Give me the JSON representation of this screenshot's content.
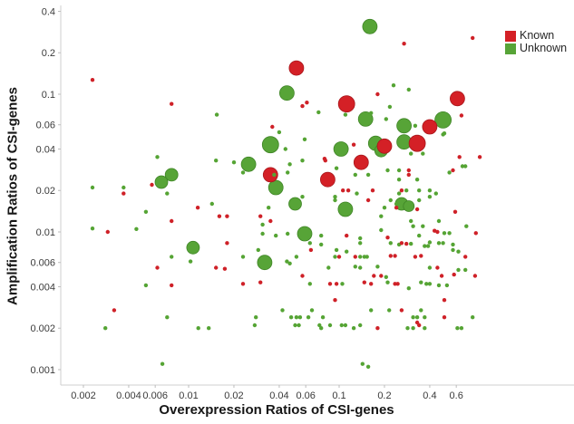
{
  "chart_data": {
    "type": "scatter",
    "title": "",
    "xlabel": "Overexpression Ratios of CSI-genes",
    "ylabel": "Amplification Ratios of CSI-genes",
    "x_scale": "log",
    "y_scale": "log",
    "x_ticks": [
      0.002,
      0.004,
      0.006,
      0.01,
      0.02,
      0.04,
      0.06,
      0.1,
      0.2,
      0.4,
      0.6
    ],
    "y_ticks": [
      0.4,
      0.2,
      0.1,
      0.06,
      0.04,
      0.02,
      0.01,
      0.006,
      0.004,
      0.002,
      0.001
    ],
    "xlim": [
      0.0016,
      1.0
    ],
    "ylim": [
      0.00075,
      0.45
    ],
    "grid": false,
    "legend_position": "top-right",
    "legend": [
      {
        "label": "Known",
        "color": "#d42026"
      },
      {
        "label": "Unknown",
        "color": "#57a437"
      }
    ],
    "series": [
      {
        "name": "Unknown (large bubbles)",
        "color": "#57a437",
        "edge_color": "#3f8526",
        "marker_radius": 8,
        "points": [
          [
            0.16,
            0.31,
            8
          ],
          [
            0.045,
            0.102,
            8
          ],
          [
            0.15,
            0.066,
            8
          ],
          [
            0.27,
            0.059,
            8
          ],
          [
            0.49,
            0.065,
            9
          ],
          [
            0.27,
            0.045,
            8
          ],
          [
            0.175,
            0.044,
            8
          ],
          [
            0.19,
            0.039,
            7
          ],
          [
            0.035,
            0.043,
            9
          ],
          [
            0.103,
            0.04,
            8
          ],
          [
            0.025,
            0.031,
            8
          ],
          [
            0.038,
            0.021,
            8
          ],
          [
            0.051,
            0.016,
            7
          ],
          [
            0.11,
            0.0146,
            8
          ],
          [
            0.059,
            0.0097,
            8
          ],
          [
            0.0077,
            0.026,
            7
          ],
          [
            0.0066,
            0.023,
            7
          ],
          [
            0.0107,
            0.0077,
            7
          ],
          [
            0.032,
            0.006,
            8
          ],
          [
            0.26,
            0.016,
            7
          ],
          [
            0.29,
            0.0154,
            6
          ]
        ]
      },
      {
        "name": "Known (large bubbles)",
        "color": "#d42026",
        "edge_color": "#a8181d",
        "marker_radius": 8,
        "points": [
          [
            0.052,
            0.155,
            8
          ],
          [
            0.112,
            0.085,
            9
          ],
          [
            0.14,
            0.032,
            8
          ],
          [
            0.084,
            0.024,
            8
          ],
          [
            0.035,
            0.026,
            8
          ],
          [
            0.61,
            0.093,
            8
          ],
          [
            0.4,
            0.058,
            8
          ],
          [
            0.33,
            0.044,
            9
          ],
          [
            0.2,
            0.042,
            8
          ]
        ]
      },
      {
        "name": "Unknown (small dots)",
        "color": "#55a434",
        "edge_color": "none",
        "marker_radius": 2.2,
        "points": [
          [
            0.0154,
            0.071
          ],
          [
            0.29,
            0.108
          ],
          [
            0.23,
            0.116
          ],
          [
            0.217,
            0.081
          ],
          [
            0.073,
            0.074
          ],
          [
            0.11,
            0.071
          ],
          [
            0.163,
            0.073
          ],
          [
            0.205,
            0.066
          ],
          [
            0.5,
            0.052
          ],
          [
            0.49,
            0.051
          ],
          [
            0.32,
            0.059
          ],
          [
            0.3,
            0.037
          ],
          [
            0.36,
            0.037
          ],
          [
            0.04,
            0.053
          ],
          [
            0.059,
            0.047
          ],
          [
            0.044,
            0.04
          ],
          [
            0.057,
            0.033
          ],
          [
            0.047,
            0.031
          ],
          [
            0.0455,
            0.027
          ],
          [
            0.023,
            0.027
          ],
          [
            0.02,
            0.032
          ],
          [
            0.096,
            0.029
          ],
          [
            0.128,
            0.026
          ],
          [
            0.156,
            0.026
          ],
          [
            0.21,
            0.028
          ],
          [
            0.25,
            0.028
          ],
          [
            0.25,
            0.024
          ],
          [
            0.33,
            0.024
          ],
          [
            0.0062,
            0.035
          ],
          [
            0.0152,
            0.033
          ],
          [
            0.037,
            0.026
          ],
          [
            0.057,
            0.018
          ],
          [
            0.0023,
            0.021
          ],
          [
            0.0037,
            0.021
          ],
          [
            0.0072,
            0.019
          ],
          [
            0.0143,
            0.016
          ],
          [
            0.0052,
            0.014
          ],
          [
            0.131,
            0.019
          ],
          [
            0.094,
            0.018
          ],
          [
            0.094,
            0.017
          ],
          [
            0.22,
            0.017
          ],
          [
            0.2,
            0.015
          ],
          [
            0.24,
            0.016
          ],
          [
            0.19,
            0.013
          ],
          [
            0.25,
            0.019
          ],
          [
            0.28,
            0.02
          ],
          [
            0.34,
            0.02
          ],
          [
            0.4,
            0.02
          ],
          [
            0.44,
            0.019
          ],
          [
            0.4,
            0.018
          ],
          [
            0.34,
            0.017
          ],
          [
            0.54,
            0.027
          ],
          [
            0.66,
            0.03
          ],
          [
            0.69,
            0.03
          ],
          [
            0.034,
            0.015
          ],
          [
            0.031,
            0.0113
          ],
          [
            0.031,
            0.0097
          ],
          [
            0.038,
            0.0094
          ],
          [
            0.0455,
            0.0097
          ],
          [
            0.076,
            0.0094
          ],
          [
            0.076,
            0.0081
          ],
          [
            0.064,
            0.0083
          ],
          [
            0.096,
            0.0074
          ],
          [
            0.112,
            0.0072
          ],
          [
            0.138,
            0.009
          ],
          [
            0.138,
            0.0083
          ],
          [
            0.22,
            0.0083
          ],
          [
            0.25,
            0.0081
          ],
          [
            0.19,
            0.0103
          ],
          [
            0.029,
            0.0074
          ],
          [
            0.0023,
            0.0106
          ],
          [
            0.0045,
            0.0105
          ],
          [
            0.205,
            0.0047
          ],
          [
            0.3,
            0.012
          ],
          [
            0.46,
            0.012
          ],
          [
            0.31,
            0.011
          ],
          [
            0.36,
            0.011
          ],
          [
            0.7,
            0.011
          ],
          [
            0.5,
            0.0098
          ],
          [
            0.54,
            0.0098
          ],
          [
            0.34,
            0.0094
          ],
          [
            0.3,
            0.0082
          ],
          [
            0.4,
            0.0084
          ],
          [
            0.37,
            0.0079
          ],
          [
            0.39,
            0.0079
          ],
          [
            0.46,
            0.0083
          ],
          [
            0.49,
            0.0083
          ],
          [
            0.57,
            0.0081
          ],
          [
            0.57,
            0.0074
          ],
          [
            0.62,
            0.0072
          ],
          [
            0.023,
            0.0066
          ],
          [
            0.045,
            0.0061
          ],
          [
            0.047,
            0.0059
          ],
          [
            0.052,
            0.0066
          ],
          [
            0.094,
            0.0066
          ],
          [
            0.138,
            0.0066
          ],
          [
            0.147,
            0.0066
          ],
          [
            0.153,
            0.0066
          ],
          [
            0.085,
            0.0055
          ],
          [
            0.128,
            0.0056
          ],
          [
            0.138,
            0.0055
          ],
          [
            0.18,
            0.0056
          ],
          [
            0.064,
            0.0042
          ],
          [
            0.105,
            0.0042
          ],
          [
            0.21,
            0.0043
          ],
          [
            0.0103,
            0.0061
          ],
          [
            0.0077,
            0.0066
          ],
          [
            0.0052,
            0.0041
          ],
          [
            0.0072,
            0.0024
          ],
          [
            0.0028,
            0.002
          ],
          [
            0.0116,
            0.002
          ],
          [
            0.0136,
            0.002
          ],
          [
            0.0067,
            0.0011
          ],
          [
            0.042,
            0.0027
          ],
          [
            0.066,
            0.0027
          ],
          [
            0.163,
            0.0027
          ],
          [
            0.215,
            0.0027
          ],
          [
            0.028,
            0.0024
          ],
          [
            0.048,
            0.0024
          ],
          [
            0.052,
            0.0024
          ],
          [
            0.055,
            0.0024
          ],
          [
            0.0625,
            0.0024
          ],
          [
            0.078,
            0.0024
          ],
          [
            0.0275,
            0.0021
          ],
          [
            0.051,
            0.0021
          ],
          [
            0.054,
            0.0021
          ],
          [
            0.074,
            0.0021
          ],
          [
            0.076,
            0.002
          ],
          [
            0.087,
            0.0021
          ],
          [
            0.104,
            0.0021
          ],
          [
            0.11,
            0.0021
          ],
          [
            0.125,
            0.002
          ],
          [
            0.138,
            0.0021
          ],
          [
            0.4,
            0.0055
          ],
          [
            0.62,
            0.0053
          ],
          [
            0.69,
            0.0053
          ],
          [
            0.35,
            0.0043
          ],
          [
            0.38,
            0.0042
          ],
          [
            0.4,
            0.0042
          ],
          [
            0.46,
            0.0041
          ],
          [
            0.52,
            0.0041
          ],
          [
            0.29,
            0.0039
          ],
          [
            0.35,
            0.0027
          ],
          [
            0.31,
            0.0024
          ],
          [
            0.33,
            0.0024
          ],
          [
            0.37,
            0.0024
          ],
          [
            0.77,
            0.0024
          ],
          [
            0.285,
            0.002
          ],
          [
            0.31,
            0.002
          ],
          [
            0.37,
            0.002
          ],
          [
            0.61,
            0.002
          ],
          [
            0.65,
            0.002
          ],
          [
            0.143,
            0.0011
          ],
          [
            0.156,
            0.00105
          ]
        ]
      },
      {
        "name": "Known (small dots)",
        "color": "#cf2128",
        "edge_color": "none",
        "marker_radius": 2.2,
        "points": [
          [
            0.0023,
            0.127
          ],
          [
            0.0077,
            0.085
          ],
          [
            0.057,
            0.082
          ],
          [
            0.061,
            0.087
          ],
          [
            0.18,
            0.1
          ],
          [
            0.27,
            0.233
          ],
          [
            0.77,
            0.256
          ],
          [
            0.65,
            0.07
          ],
          [
            0.036,
            0.058
          ],
          [
            0.125,
            0.043
          ],
          [
            0.08,
            0.034
          ],
          [
            0.081,
            0.033
          ],
          [
            0.63,
            0.035
          ],
          [
            0.86,
            0.035
          ],
          [
            0.29,
            0.028
          ],
          [
            0.29,
            0.026
          ],
          [
            0.57,
            0.028
          ],
          [
            0.0057,
            0.022
          ],
          [
            0.0037,
            0.019
          ],
          [
            0.0115,
            0.015
          ],
          [
            0.016,
            0.013
          ],
          [
            0.018,
            0.013
          ],
          [
            0.106,
            0.02
          ],
          [
            0.115,
            0.02
          ],
          [
            0.167,
            0.02
          ],
          [
            0.156,
            0.017
          ],
          [
            0.24,
            0.015
          ],
          [
            0.26,
            0.02
          ],
          [
            0.0077,
            0.012
          ],
          [
            0.0029,
            0.01
          ],
          [
            0.03,
            0.013
          ],
          [
            0.035,
            0.012
          ],
          [
            0.112,
            0.0094
          ],
          [
            0.21,
            0.0091
          ],
          [
            0.018,
            0.0083
          ],
          [
            0.065,
            0.0074
          ],
          [
            0.33,
            0.0146
          ],
          [
            0.59,
            0.014
          ],
          [
            0.43,
            0.0102
          ],
          [
            0.45,
            0.01
          ],
          [
            0.81,
            0.0098
          ],
          [
            0.28,
            0.0082
          ],
          [
            0.26,
            0.0083
          ],
          [
            0.32,
            0.0066
          ],
          [
            0.35,
            0.0067
          ],
          [
            0.69,
            0.0066
          ],
          [
            0.1,
            0.0066
          ],
          [
            0.128,
            0.0066
          ],
          [
            0.22,
            0.0067
          ],
          [
            0.235,
            0.0067
          ],
          [
            0.057,
            0.0048
          ],
          [
            0.17,
            0.0048
          ],
          [
            0.19,
            0.0048
          ],
          [
            0.023,
            0.0042
          ],
          [
            0.03,
            0.0043
          ],
          [
            0.087,
            0.0042
          ],
          [
            0.096,
            0.0042
          ],
          [
            0.147,
            0.0043
          ],
          [
            0.163,
            0.0042
          ],
          [
            0.235,
            0.0042
          ],
          [
            0.245,
            0.0042
          ],
          [
            0.45,
            0.0055
          ],
          [
            0.48,
            0.0048
          ],
          [
            0.58,
            0.0049
          ],
          [
            0.8,
            0.0048
          ],
          [
            0.094,
            0.0032
          ],
          [
            0.5,
            0.0032
          ],
          [
            0.26,
            0.0027
          ],
          [
            0.0062,
            0.0055
          ],
          [
            0.0152,
            0.0055
          ],
          [
            0.0174,
            0.0054
          ],
          [
            0.0077,
            0.0041
          ],
          [
            0.0032,
            0.0027
          ],
          [
            0.18,
            0.002
          ],
          [
            0.5,
            0.0024
          ],
          [
            0.33,
            0.0022
          ],
          [
            0.34,
            0.0021
          ]
        ]
      }
    ]
  }
}
